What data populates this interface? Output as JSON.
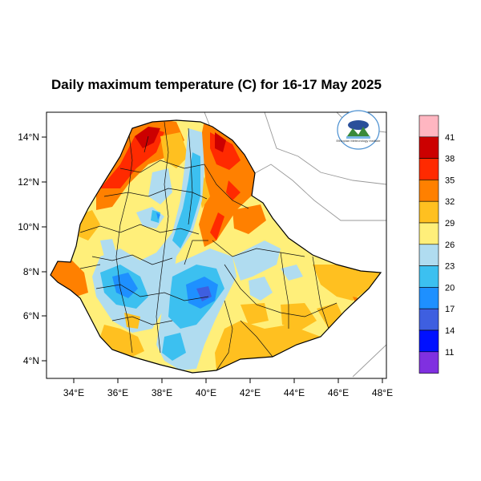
{
  "title": "Daily maximum temperature (C) for 16-17 May 2025",
  "axes": {
    "lon_ticks": [
      "34°E",
      "36°E",
      "38°E",
      "40°E",
      "42°E",
      "44°E",
      "46°E",
      "48°E"
    ],
    "lat_ticks": [
      "14°N",
      "12°N",
      "10°N",
      "8°N",
      "6°N",
      "4°N"
    ]
  },
  "colorbar": {
    "labels": [
      "41",
      "38",
      "35",
      "32",
      "29",
      "26",
      "23",
      "20",
      "17",
      "14",
      "11"
    ],
    "colors": [
      "#ffb6c1",
      "#cc0000",
      "#ff2a00",
      "#ff8000",
      "#ffc020",
      "#ffef7a",
      "#b0dcf0",
      "#3cc0f0",
      "#1e90ff",
      "#3e5fe0",
      "#0010ff",
      "#8030e0"
    ]
  },
  "logo": {
    "text": "Ethiopian Meteorology Institute"
  }
}
